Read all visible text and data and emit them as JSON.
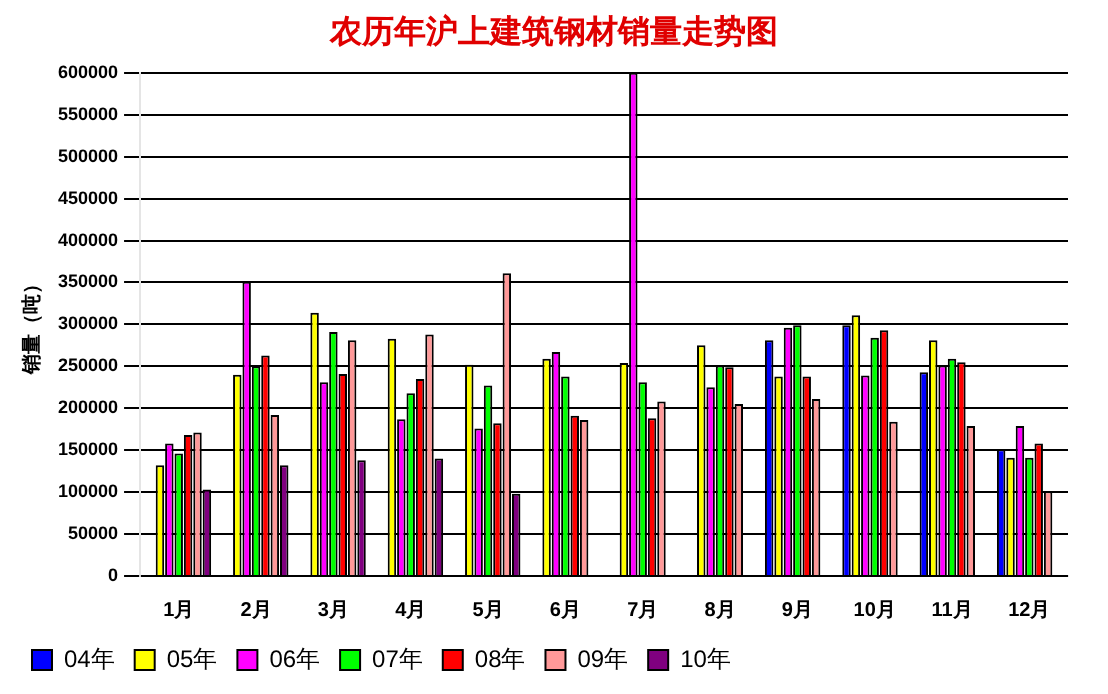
{
  "chart_data": {
    "type": "bar",
    "title": "农历年沪上建筑钢材销量走势图",
    "ylabel": "销量（吨）",
    "categories": [
      "1月",
      "2月",
      "3月",
      "4月",
      "5月",
      "6月",
      "7月",
      "8月",
      "9月",
      "10月",
      "11月",
      "12月"
    ],
    "series": [
      {
        "name": "04年",
        "color": "#0000ff",
        "values": [
          null,
          null,
          null,
          null,
          null,
          null,
          null,
          null,
          281000,
          299000,
          243000,
          151000
        ]
      },
      {
        "name": "05年",
        "color": "#ffff00",
        "values": [
          132000,
          240000,
          314000,
          283000,
          252000,
          259000,
          254000,
          275000,
          238000,
          311000,
          281000,
          141000
        ]
      },
      {
        "name": "06年",
        "color": "#ff00ff",
        "values": [
          158000,
          351000,
          231000,
          187000,
          176000,
          267000,
          600000,
          225000,
          296000,
          239000,
          251000,
          179000
        ]
      },
      {
        "name": "07年",
        "color": "#00ff00",
        "values": [
          146000,
          250000,
          291000,
          218000,
          227000,
          238000,
          231000,
          251000,
          299000,
          284000,
          259000,
          141000
        ]
      },
      {
        "name": "08年",
        "color": "#ff0000",
        "values": [
          168000,
          263000,
          241000,
          235000,
          182000,
          191000,
          188000,
          249000,
          238000,
          293000,
          255000,
          158000
        ]
      },
      {
        "name": "09年",
        "color": "#ff9999",
        "values": [
          171000,
          192000,
          281000,
          288000,
          361000,
          186000,
          208000,
          205000,
          211000,
          184000,
          179000,
          101000
        ]
      },
      {
        "name": "10年",
        "color": "#800080",
        "values": [
          103000,
          132000,
          138000,
          140000,
          98000,
          null,
          null,
          null,
          null,
          null,
          null,
          null
        ]
      }
    ],
    "ylim": [
      0,
      600000
    ],
    "yticks": [
      0,
      50000,
      100000,
      150000,
      200000,
      250000,
      300000,
      350000,
      400000,
      450000,
      500000,
      550000,
      600000
    ],
    "grid": "y",
    "legend": "bottom"
  }
}
